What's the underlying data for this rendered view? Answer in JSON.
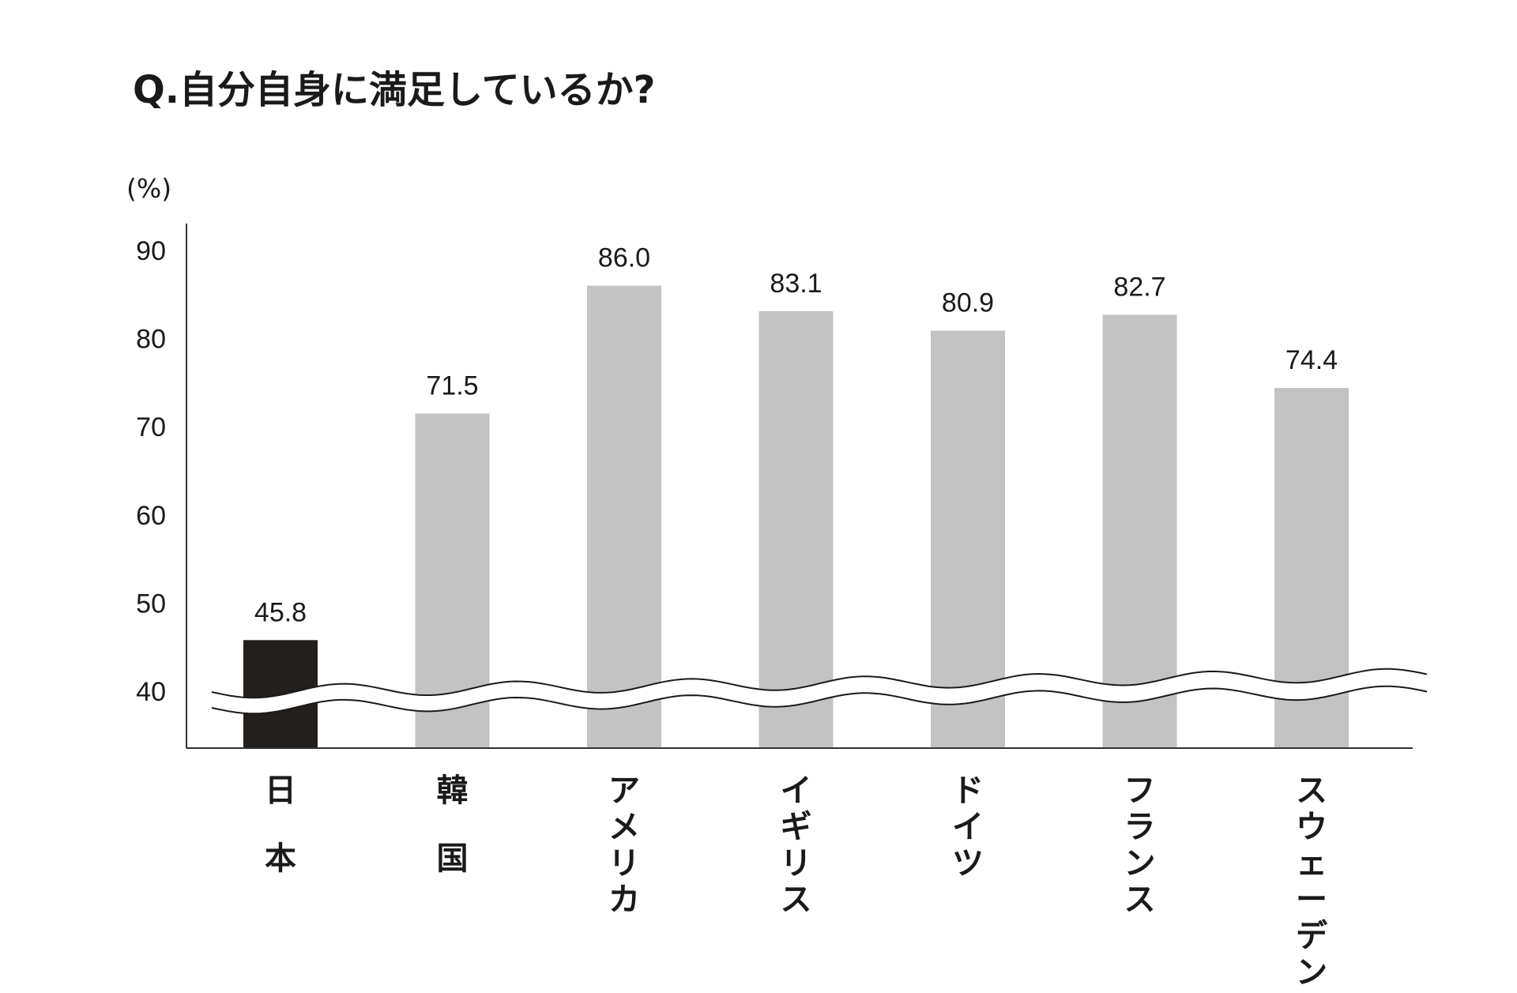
{
  "chart_data": {
    "type": "bar",
    "title": "Q.自分自身に満足しているか?",
    "unit_label": "(%)",
    "categories": [
      "日本",
      "韓国",
      "アメリカ",
      "イギリス",
      "ドイツ",
      "フランス",
      "スウェーデン"
    ],
    "values": [
      45.8,
      71.5,
      86.0,
      83.1,
      80.9,
      82.7,
      74.4
    ],
    "value_labels": [
      "45.8",
      "71.5",
      "86.0",
      "83.1",
      "80.9",
      "82.7",
      "74.4"
    ],
    "yticks": [
      "40",
      "50",
      "60",
      "70",
      "80",
      "90"
    ],
    "ylim": [
      40,
      90
    ],
    "axis_break": true,
    "grid": false,
    "colors": {
      "highlight": "#231f1d",
      "bar": "#c3c3c3",
      "axis": "#333333"
    },
    "highlight_index": 0
  }
}
